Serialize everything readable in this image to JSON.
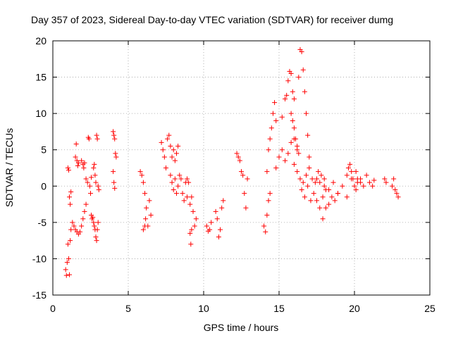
{
  "chart_data": {
    "type": "scatter",
    "title": "Day 357 of 2023, Sidereal Day-to-day VTEC variation (SDTVAR) for receiver dumg",
    "xlabel": "GPS time / hours",
    "ylabel": "SDTVAR / TECUs",
    "xlim": [
      0,
      25
    ],
    "ylim": [
      -15,
      20
    ],
    "xticks": [
      0,
      5,
      10,
      15,
      20,
      25
    ],
    "yticks": [
      -15,
      -10,
      -5,
      0,
      5,
      10,
      15,
      20
    ],
    "grid": true,
    "marker": "plus",
    "color": "#ff0000",
    "series": [
      {
        "name": "SDTVAR",
        "segments": [
          {
            "x": [
              0.85,
              0.9,
              0.95,
              1.0,
              1.05,
              1.1,
              1.15
            ],
            "y": [
              -11.5,
              -12.3,
              -10.5,
              -8.0,
              -10.0,
              -12.2,
              -7.5
            ]
          },
          {
            "x": [
              1.0,
              1.05,
              1.1,
              1.15,
              1.2
            ],
            "y": [
              2.5,
              2.2,
              -1.5,
              -2.5,
              -0.8
            ]
          },
          {
            "x": [
              1.2,
              1.3,
              1.4,
              1.5,
              1.6,
              1.7,
              1.8,
              1.9,
              2.0,
              2.1,
              2.2
            ],
            "y": [
              -6.0,
              -5.0,
              -5.5,
              -6.0,
              -6.3,
              -6.6,
              -6.3,
              -5.5,
              -4.5,
              -3.5,
              -2.5
            ]
          },
          {
            "x": [
              1.5,
              1.55,
              1.6,
              1.65,
              1.7
            ],
            "y": [
              4.0,
              5.8,
              3.5,
              2.8,
              3.2
            ]
          },
          {
            "x": [
              1.9,
              2.0,
              2.05,
              2.1
            ],
            "y": [
              3.5,
              3.0,
              2.5,
              3.2
            ]
          },
          {
            "x": [
              2.2,
              2.3,
              2.35,
              2.4,
              2.45,
              2.5,
              2.55
            ],
            "y": [
              1.0,
              0.5,
              6.7,
              6.5,
              0.0,
              -1.0,
              1.2
            ]
          },
          {
            "x": [
              2.55,
              2.6,
              2.65,
              2.7,
              2.75,
              2.8,
              2.85,
              2.9,
              2.95,
              3.0
            ],
            "y": [
              -4.0,
              -4.5,
              -4.3,
              -5.0,
              -5.5,
              -6.0,
              -7.0,
              -7.5,
              -6.0,
              -5.0
            ]
          },
          {
            "x": [
              2.7,
              2.75,
              2.8,
              2.85,
              2.9,
              2.95,
              3.0,
              3.05
            ],
            "y": [
              2.5,
              3.0,
              1.5,
              0.5,
              7.0,
              6.5,
              0.0,
              -0.5
            ]
          },
          {
            "x": [
              4.0,
              4.05,
              4.1,
              4.15,
              4.2
            ],
            "y": [
              7.5,
              7.0,
              6.5,
              4.5,
              4.0
            ]
          },
          {
            "x": [
              4.0,
              4.05,
              4.1
            ],
            "y": [
              2.0,
              0.5,
              -0.3
            ]
          },
          {
            "x": [
              5.8,
              5.9,
              6.0,
              6.1,
              6.2,
              6.3,
              6.4,
              6.5
            ],
            "y": [
              2.0,
              1.5,
              0.5,
              -1.0,
              -3.0,
              -5.5,
              -2.0,
              -4.0
            ]
          },
          {
            "x": [
              6.0,
              6.1,
              6.15
            ],
            "y": [
              -6.0,
              -5.5,
              -4.5
            ]
          },
          {
            "x": [
              7.2,
              7.3,
              7.4,
              7.5,
              7.6,
              7.7,
              7.8,
              7.9,
              8.0,
              8.1,
              8.2,
              8.3
            ],
            "y": [
              6.0,
              5.0,
              4.0,
              2.5,
              6.5,
              7.0,
              5.5,
              4.0,
              5.0,
              3.5,
              4.5,
              5.5
            ]
          },
          {
            "x": [
              7.8,
              7.9,
              8.0,
              8.1,
              8.2,
              8.3
            ],
            "y": [
              1.5,
              0.5,
              -0.5,
              1.0,
              -1.0,
              0.0
            ]
          },
          {
            "x": [
              8.4,
              8.5,
              8.6,
              8.7,
              8.8,
              8.9
            ],
            "y": [
              1.5,
              1.0,
              -1.0,
              -2.0,
              0.5,
              -1.5
            ]
          },
          {
            "x": [
              8.9,
              9.0,
              9.1,
              9.2,
              9.3,
              9.4,
              9.5
            ],
            "y": [
              1.0,
              0.5,
              -2.5,
              -1.5,
              -3.5,
              -5.5,
              -4.5
            ]
          },
          {
            "x": [
              9.1,
              9.15,
              9.2
            ],
            "y": [
              -6.5,
              -8.0,
              -6.0
            ]
          },
          {
            "x": [
              10.2,
              10.3,
              10.4,
              10.5
            ],
            "y": [
              -5.5,
              -6.2,
              -6.0,
              -5.0
            ]
          },
          {
            "x": [
              10.8,
              10.9,
              11.0,
              11.1,
              11.2,
              11.3
            ],
            "y": [
              -3.5,
              -4.5,
              -7.0,
              -6.0,
              -3.0,
              -2.0
            ]
          },
          {
            "x": [
              12.2,
              12.3,
              12.4,
              12.5,
              12.6,
              12.7,
              12.8,
              12.9
            ],
            "y": [
              4.5,
              4.0,
              3.5,
              2.0,
              1.5,
              -1.0,
              -3.0,
              1.0
            ]
          },
          {
            "x": [
              14.0,
              14.1,
              14.2,
              14.3,
              14.4
            ],
            "y": [
              -5.5,
              -6.3,
              -4.0,
              -2.0,
              -1.0
            ]
          },
          {
            "x": [
              14.2,
              14.3,
              14.4,
              14.5,
              14.6,
              14.7,
              14.8
            ],
            "y": [
              2.0,
              5.0,
              6.5,
              8.0,
              10.0,
              11.5,
              9.0
            ]
          },
          {
            "x": [
              14.8,
              15.0,
              15.2,
              15.4,
              15.6,
              15.8,
              16.0,
              16.2
            ],
            "y": [
              2.5,
              4.0,
              5.0,
              3.5,
              4.5,
              6.0,
              6.5,
              5.0
            ]
          },
          {
            "x": [
              15.2,
              15.4,
              15.5,
              15.6,
              15.7,
              15.8,
              15.9,
              16.0
            ],
            "y": [
              9.5,
              12.0,
              12.5,
              14.5,
              15.8,
              15.5,
              13.0,
              12.0
            ]
          },
          {
            "x": [
              15.8,
              15.9,
              16.0,
              16.1,
              16.2,
              16.3
            ],
            "y": [
              10.0,
              9.0,
              8.0,
              6.5,
              5.5,
              4.5
            ]
          },
          {
            "x": [
              16.3,
              16.4,
              16.5,
              16.6,
              16.7,
              16.8,
              16.9,
              17.0
            ],
            "y": [
              15.0,
              18.8,
              18.5,
              16.0,
              13.0,
              10.0,
              7.0,
              4.0
            ]
          },
          {
            "x": [
              16.0,
              16.2,
              16.4,
              16.6,
              16.8,
              17.0,
              17.2,
              17.4,
              17.6,
              17.8,
              18.0
            ],
            "y": [
              3.0,
              2.0,
              1.0,
              0.5,
              1.5,
              2.5,
              1.0,
              0.5,
              2.0,
              1.5,
              0.0
            ]
          },
          {
            "x": [
              16.5,
              16.7,
              16.9,
              17.1,
              17.3,
              17.5,
              17.7,
              17.9,
              18.1
            ],
            "y": [
              -0.5,
              -1.5,
              0.0,
              -2.0,
              -1.0,
              1.0,
              0.5,
              -1.5,
              -0.5
            ]
          },
          {
            "x": [
              17.5,
              17.7,
              17.9,
              18.1,
              18.3,
              18.5,
              18.7,
              18.9
            ],
            "y": [
              -2.0,
              -3.0,
              -4.5,
              -3.0,
              -2.5,
              -1.5,
              -2.0,
              -1.0
            ]
          },
          {
            "x": [
              18.0,
              18.3,
              18.6,
              18.9,
              19.2,
              19.5,
              19.8,
              20.1,
              20.4
            ],
            "y": [
              1.0,
              -0.5,
              0.5,
              -1.0,
              0.0,
              -1.5,
              1.0,
              2.0,
              0.5
            ]
          },
          {
            "x": [
              19.5,
              19.6,
              19.7,
              19.8,
              19.9,
              20.0,
              20.1,
              20.2
            ],
            "y": [
              1.5,
              2.5,
              3.0,
              2.0,
              1.0,
              0.0,
              -0.5,
              1.0
            ]
          },
          {
            "x": [
              20.2,
              20.4,
              20.6,
              20.8,
              21.0,
              21.2,
              21.3
            ],
            "y": [
              0.5,
              1.0,
              0.0,
              1.5,
              0.5,
              0.0,
              0.8
            ]
          },
          {
            "x": [
              22.0,
              22.1,
              22.5,
              22.6,
              22.7,
              22.8,
              22.9
            ],
            "y": [
              1.0,
              0.5,
              0.0,
              1.0,
              -0.5,
              -1.0,
              -1.5
            ]
          }
        ]
      }
    ]
  }
}
